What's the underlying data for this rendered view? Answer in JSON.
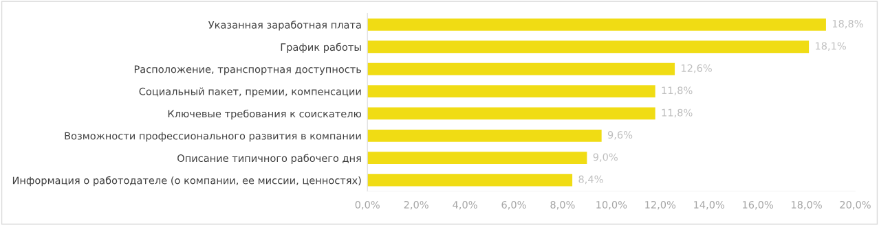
{
  "chart_data": {
    "type": "bar",
    "orientation": "horizontal",
    "categories": [
      "Указанная заработная плата",
      "График работы",
      "Расположение, транспортная доступность",
      "Социальный пакет, премии, компенсации",
      "Ключевые требования к соискателю",
      "Возможности профессионального развития в компании",
      "Описание типичного рабочего дня",
      "Информация о работодателе (о компании, ее миссии, ценностях)"
    ],
    "values": [
      18.8,
      18.1,
      12.6,
      11.8,
      11.8,
      9.6,
      9.0,
      8.4
    ],
    "value_labels": [
      "18,8%",
      "18,1%",
      "12,6%",
      "11,8%",
      "11,8%",
      "9,6%",
      "9,0%",
      "8,4%"
    ],
    "color": "#f0dc14",
    "xlim": [
      0,
      20
    ],
    "xticks": [
      {
        "value": 0,
        "label": "0,0%"
      },
      {
        "value": 2,
        "label": "2,0%"
      },
      {
        "value": 4,
        "label": "4,0%"
      },
      {
        "value": 6,
        "label": "6,0%"
      },
      {
        "value": 8,
        "label": "8,0%"
      },
      {
        "value": 10,
        "label": "10,0%"
      },
      {
        "value": 12,
        "label": "12,0%"
      },
      {
        "value": 14,
        "label": "14,0%"
      },
      {
        "value": 16,
        "label": "16,0%"
      },
      {
        "value": 18,
        "label": "18,0%"
      },
      {
        "value": 20,
        "label": "20,0%"
      }
    ]
  }
}
